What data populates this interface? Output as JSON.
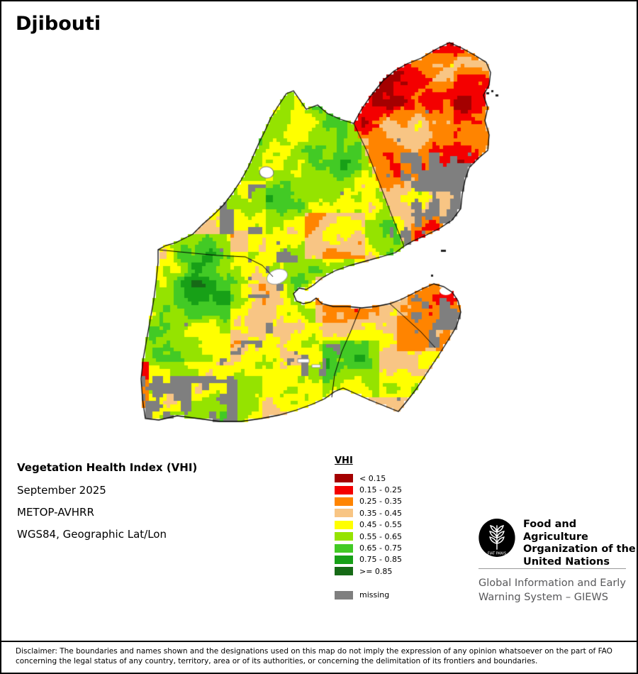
{
  "title": "Djibouti",
  "info": {
    "heading": "Vegetation Health Index (VHI)",
    "period": "September 2025",
    "sensor": "METOP-AVHRR",
    "projection": "WGS84, Geographic Lat/Lon"
  },
  "legend": {
    "heading": "VHI",
    "classes": [
      {
        "label": "< 0.15",
        "color": "#a40000"
      },
      {
        "label": "0.15 - 0.25",
        "color": "#f40000"
      },
      {
        "label": "0.25 - 0.35",
        "color": "#ff8400"
      },
      {
        "label": "0.35 - 0.45",
        "color": "#f8c584"
      },
      {
        "label": "0.45 - 0.55",
        "color": "#ffff00"
      },
      {
        "label": "0.55 - 0.65",
        "color": "#95e300"
      },
      {
        "label": "0.65 - 0.75",
        "color": "#42ca25"
      },
      {
        "label": "0.75 - 0.85",
        "color": "#17a017"
      },
      {
        "label": ">= 0.85",
        "color": "#166a16"
      }
    ],
    "missing": {
      "label": "missing",
      "color": "#7f7f7f"
    }
  },
  "footer": {
    "fao_name_lines": [
      "Food and Agriculture",
      "Organization of the",
      "United Nations"
    ],
    "fao_motto": "FIAT PANIS",
    "giews_lines": [
      "Global Information and Early",
      "Warning System – GIEWS"
    ]
  },
  "disclaimer": "Disclaimer: The boundaries and names shown and the designations used on this map do not imply the expression of any opinion whatsoever on the part of FAO concerning the legal status of any country, territory, area or of its authorities, or concerning the delimitation of its frontiers and boundaries."
}
